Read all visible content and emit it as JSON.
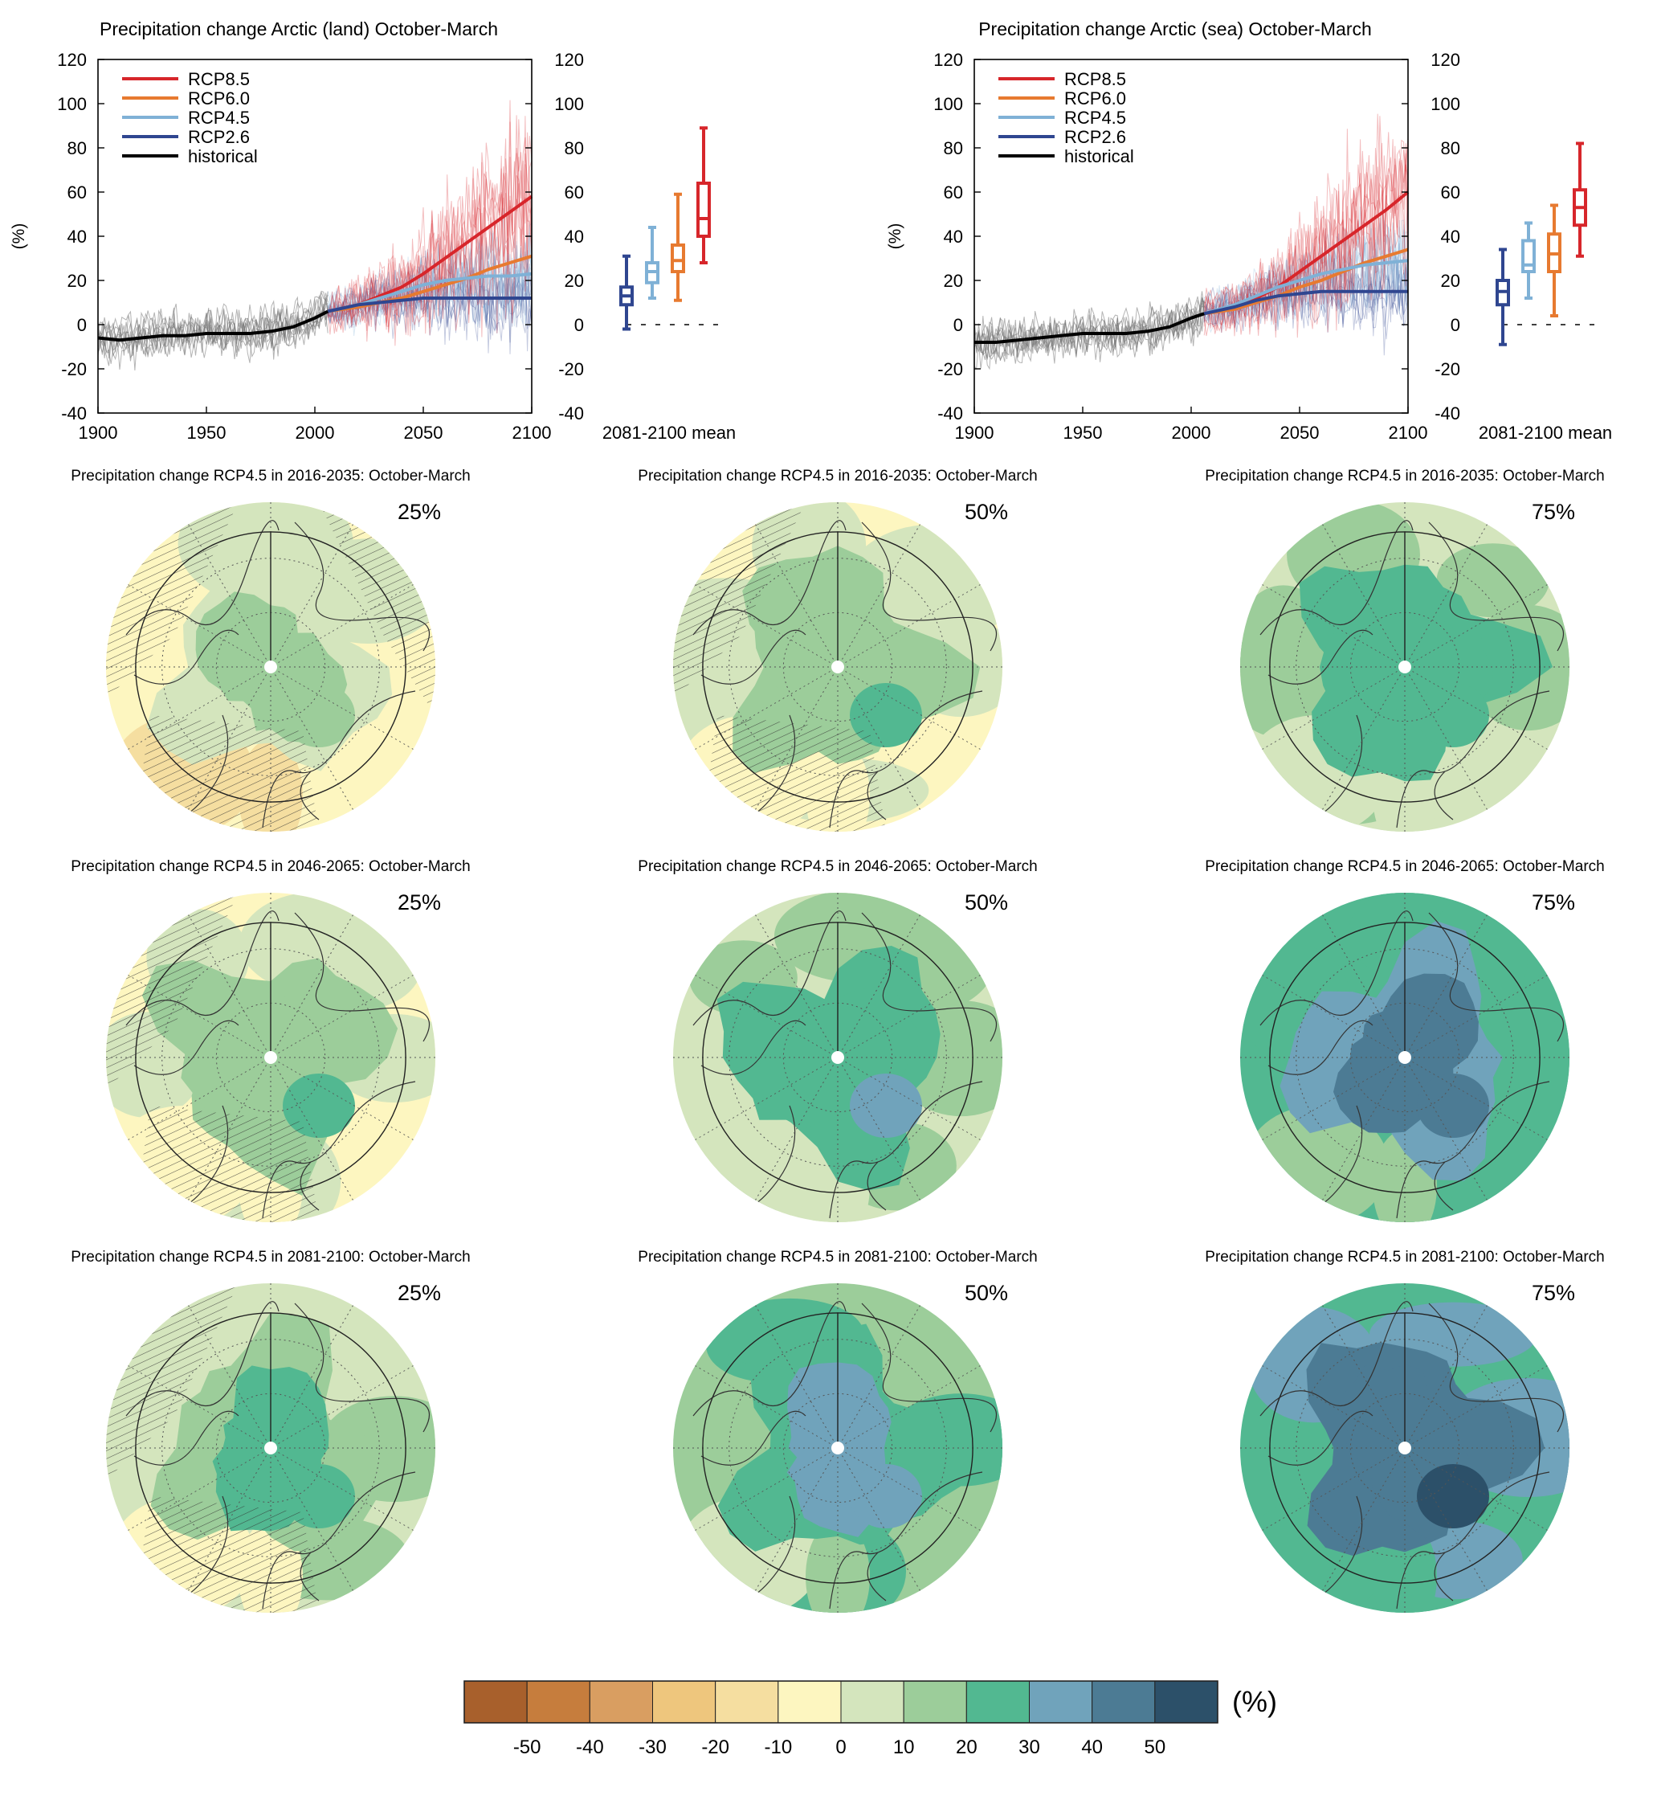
{
  "chart_data": [
    {
      "type": "line",
      "title": "Precipitation change Arctic (land) October-March",
      "ylabel": "(%)",
      "xlim": [
        1900,
        2100
      ],
      "ylim": [
        -40,
        120
      ],
      "x_ticks": [
        "1900",
        "1950",
        "2000",
        "2050",
        "2100"
      ],
      "y_ticks": [
        "-40",
        "-20",
        "0",
        "20",
        "40",
        "60",
        "80",
        "100",
        "120"
      ],
      "legend_position": "top-left",
      "box_label": "2081-2100 mean",
      "series": [
        {
          "name": "RCP8.5",
          "color": "#d7262b",
          "x": [
            2006,
            2020,
            2030,
            2040,
            2050,
            2060,
            2070,
            2080,
            2090,
            2100
          ],
          "y": [
            6,
            9,
            13,
            17,
            23,
            30,
            37,
            44,
            51,
            58
          ],
          "box": {
            "min": 28,
            "q1": 40,
            "median": 48,
            "q3": 64,
            "max": 89
          }
        },
        {
          "name": "RCP6.0",
          "color": "#e77a30",
          "x": [
            2006,
            2020,
            2030,
            2040,
            2050,
            2060,
            2070,
            2080,
            2090,
            2100
          ],
          "y": [
            6,
            8,
            10,
            12,
            15,
            18,
            21,
            25,
            28,
            31
          ],
          "box": {
            "min": 11,
            "q1": 24,
            "median": 29,
            "q3": 36,
            "max": 59
          }
        },
        {
          "name": "RCP4.5",
          "color": "#7fb1d6",
          "x": [
            2006,
            2020,
            2030,
            2040,
            2050,
            2060,
            2070,
            2080,
            2090,
            2100
          ],
          "y": [
            6,
            9,
            12,
            15,
            18,
            20,
            21,
            22,
            22,
            23
          ],
          "box": {
            "min": 12,
            "q1": 19,
            "median": 24,
            "q3": 28,
            "max": 44
          }
        },
        {
          "name": "RCP2.6",
          "color": "#2f4690",
          "x": [
            2006,
            2020,
            2030,
            2040,
            2050,
            2060,
            2070,
            2080,
            2090,
            2100
          ],
          "y": [
            6,
            9,
            10,
            11,
            12,
            12,
            12,
            12,
            12,
            12
          ],
          "box": {
            "min": -2,
            "q1": 9,
            "median": 13,
            "q3": 17,
            "max": 31
          }
        },
        {
          "name": "historical",
          "color": "#000000",
          "x": [
            1900,
            1910,
            1920,
            1930,
            1940,
            1950,
            1960,
            1970,
            1980,
            1990,
            2000,
            2006
          ],
          "y": [
            -6,
            -7,
            -6,
            -5,
            -5,
            -4,
            -4,
            -4,
            -3,
            -1,
            3,
            6
          ]
        }
      ]
    },
    {
      "type": "line",
      "title": "Precipitation change Arctic (sea) October-March",
      "ylabel": "(%)",
      "xlim": [
        1900,
        2100
      ],
      "ylim": [
        -40,
        120
      ],
      "x_ticks": [
        "1900",
        "1950",
        "2000",
        "2050",
        "2100"
      ],
      "y_ticks": [
        "-40",
        "-20",
        "0",
        "20",
        "40",
        "60",
        "80",
        "100",
        "120"
      ],
      "legend_position": "top-left",
      "box_label": "2081-2100 mean",
      "series": [
        {
          "name": "RCP8.5",
          "color": "#d7262b",
          "x": [
            2006,
            2020,
            2030,
            2040,
            2050,
            2060,
            2070,
            2080,
            2090,
            2100
          ],
          "y": [
            5,
            8,
            12,
            17,
            24,
            31,
            38,
            45,
            52,
            60
          ],
          "box": {
            "min": 31,
            "q1": 45,
            "median": 53,
            "q3": 61,
            "max": 82
          }
        },
        {
          "name": "RCP6.0",
          "color": "#e77a30",
          "x": [
            2006,
            2020,
            2030,
            2040,
            2050,
            2060,
            2070,
            2080,
            2090,
            2100
          ],
          "y": [
            5,
            7,
            10,
            13,
            17,
            20,
            24,
            28,
            31,
            34
          ],
          "box": {
            "min": 4,
            "q1": 24,
            "median": 32,
            "q3": 41,
            "max": 54
          }
        },
        {
          "name": "RCP4.5",
          "color": "#7fb1d6",
          "x": [
            2006,
            2020,
            2030,
            2040,
            2050,
            2060,
            2070,
            2080,
            2090,
            2100
          ],
          "y": [
            5,
            9,
            13,
            17,
            20,
            23,
            25,
            27,
            28,
            29
          ],
          "box": {
            "min": 12,
            "q1": 24,
            "median": 27,
            "q3": 38,
            "max": 46
          }
        },
        {
          "name": "RCP2.6",
          "color": "#2f4690",
          "x": [
            2006,
            2020,
            2030,
            2040,
            2050,
            2060,
            2070,
            2080,
            2090,
            2100
          ],
          "y": [
            5,
            8,
            11,
            13,
            14,
            15,
            15,
            15,
            15,
            15
          ],
          "box": {
            "min": -9,
            "q1": 9,
            "median": 15,
            "q3": 20,
            "max": 34
          }
        },
        {
          "name": "historical",
          "color": "#000000",
          "x": [
            1900,
            1910,
            1920,
            1930,
            1940,
            1950,
            1960,
            1970,
            1980,
            1990,
            2000,
            2006
          ],
          "y": [
            -8,
            -8,
            -7,
            -6,
            -5,
            -4,
            -4,
            -4,
            -3,
            -1,
            3,
            5
          ]
        }
      ]
    },
    {
      "type": "heatmap",
      "projection": "north-polar-stereographic",
      "unit_label": "(%)",
      "colorbar": {
        "ticks": [
          "-50",
          "-40",
          "-30",
          "-20",
          "-10",
          "0",
          "10",
          "20",
          "30",
          "40",
          "50"
        ],
        "colors": [
          "#a8602c",
          "#c67d3d",
          "#d99e61",
          "#eec67d",
          "#f5dea0",
          "#fdf6c0",
          "#d4e5bd",
          "#9ccd9a",
          "#52b891",
          "#70a3bb",
          "#4c7b94",
          "#2c5069"
        ]
      },
      "maps": [
        {
          "title": "Precipitation change RCP4.5 in 2016-2035: October-March",
          "percentile": "25%",
          "mean_change": 2,
          "hatched": true
        },
        {
          "title": "Precipitation change RCP4.5 in 2016-2035: October-March",
          "percentile": "50%",
          "mean_change": 8,
          "hatched": true
        },
        {
          "title": "Precipitation change RCP4.5 in 2016-2035: October-March",
          "percentile": "75%",
          "mean_change": 16,
          "hatched": false
        },
        {
          "title": "Precipitation change RCP4.5 in 2046-2065: October-March",
          "percentile": "25%",
          "mean_change": 7,
          "hatched": true
        },
        {
          "title": "Precipitation change RCP4.5 in 2046-2065: October-March",
          "percentile": "50%",
          "mean_change": 18,
          "hatched": false
        },
        {
          "title": "Precipitation change RCP4.5 in 2046-2065: October-March",
          "percentile": "75%",
          "mean_change": 30,
          "hatched": false
        },
        {
          "title": "Precipitation change RCP4.5 in 2081-2100: October-March",
          "percentile": "25%",
          "mean_change": 12,
          "hatched": true
        },
        {
          "title": "Precipitation change RCP4.5 in 2081-2100: October-March",
          "percentile": "50%",
          "mean_change": 24,
          "hatched": false
        },
        {
          "title": "Precipitation change RCP4.5 in 2081-2100: October-March",
          "percentile": "75%",
          "mean_change": 38,
          "hatched": false
        }
      ]
    }
  ]
}
